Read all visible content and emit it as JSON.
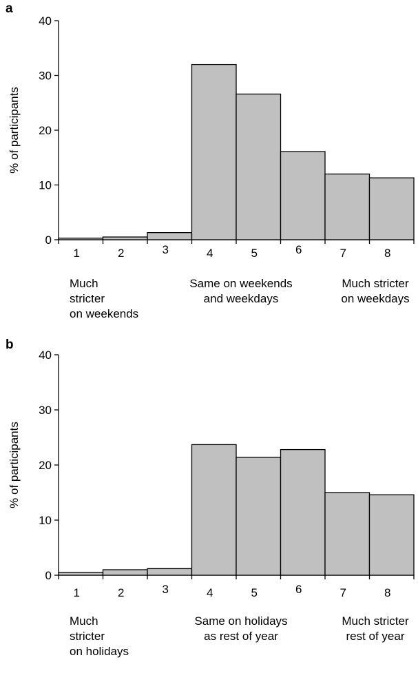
{
  "chart_data": [
    {
      "type": "bar",
      "panel": "a",
      "categories": [
        "1",
        "2",
        "3",
        "4",
        "5",
        "6",
        "7",
        "8"
      ],
      "values": [
        0.3,
        0.5,
        1.3,
        32,
        26.6,
        16.1,
        12.0,
        11.3
      ],
      "ylabel": "% of participants",
      "xlabel": "",
      "ylim": [
        0,
        40
      ],
      "yticks": [
        "0",
        "10",
        "20",
        "30",
        "40"
      ],
      "annotations": {
        "left": [
          "Much",
          "stricter",
          "on weekends"
        ],
        "center": [
          "Same on weekends",
          "and weekdays"
        ],
        "right": [
          "Much stricter",
          "on weekdays"
        ]
      }
    },
    {
      "type": "bar",
      "panel": "b",
      "categories": [
        "1",
        "2",
        "3",
        "4",
        "5",
        "6",
        "7",
        "8"
      ],
      "values": [
        0.5,
        1.0,
        1.2,
        23.7,
        21.4,
        22.8,
        15.0,
        14.6
      ],
      "ylabel": "% of participants",
      "xlabel": "",
      "ylim": [
        0,
        40
      ],
      "yticks": [
        "0",
        "10",
        "20",
        "30",
        "40"
      ],
      "annotations": {
        "left": [
          "Much",
          "stricter",
          "on holidays"
        ],
        "center": [
          "Same on holidays",
          "as rest of year"
        ],
        "right": [
          "Much stricter",
          "rest of year"
        ]
      }
    }
  ],
  "colors": {
    "bar_fill": "#c0c0c0",
    "bar_stroke": "#000000"
  }
}
